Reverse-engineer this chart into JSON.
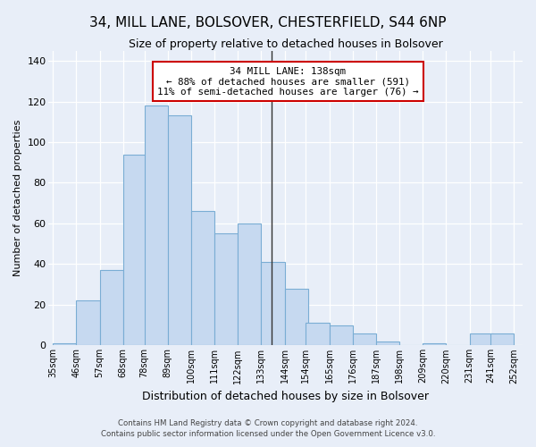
{
  "title": "34, MILL LANE, BOLSOVER, CHESTERFIELD, S44 6NP",
  "subtitle": "Size of property relative to detached houses in Bolsover",
  "xlabel": "Distribution of detached houses by size in Bolsover",
  "ylabel": "Number of detached properties",
  "bin_labels": [
    "35sqm",
    "46sqm",
    "57sqm",
    "68sqm",
    "78sqm",
    "89sqm",
    "100sqm",
    "111sqm",
    "122sqm",
    "133sqm",
    "144sqm",
    "154sqm",
    "165sqm",
    "176sqm",
    "187sqm",
    "198sqm",
    "209sqm",
    "220sqm",
    "231sqm",
    "241sqm",
    "252sqm"
  ],
  "bin_lefts": [
    35,
    46,
    57,
    68,
    78,
    89,
    100,
    111,
    122,
    133,
    144,
    154,
    165,
    176,
    187,
    198,
    209,
    220,
    231,
    241
  ],
  "bar_heights": [
    1,
    22,
    37,
    94,
    118,
    113,
    66,
    55,
    60,
    41,
    28,
    11,
    10,
    6,
    2,
    0,
    1,
    0,
    6,
    6
  ],
  "bar_color": "#c6d9f0",
  "bar_edge_color": "#7aadd4",
  "property_line_x": 138,
  "property_line_label": "34 MILL LANE: 138sqm",
  "annotation_line1": "← 88% of detached houses are smaller (591)",
  "annotation_line2": "11% of semi-detached houses are larger (76) →",
  "annotation_box_color": "#ffffff",
  "annotation_box_edge_color": "#cc0000",
  "line_color": "#333333",
  "ylim": [
    0,
    145
  ],
  "yticks": [
    0,
    20,
    40,
    60,
    80,
    100,
    120,
    140
  ],
  "footer_line1": "Contains HM Land Registry data © Crown copyright and database right 2024.",
  "footer_line2": "Contains public sector information licensed under the Open Government Licence v3.0.",
  "background_color": "#e8eef8",
  "plot_bg_color": "#e8eef8",
  "grid_color": "#ffffff",
  "title_fontsize": 11,
  "subtitle_fontsize": 9,
  "xlabel_fontsize": 9,
  "ylabel_fontsize": 8,
  "tick_fontsize": 7
}
